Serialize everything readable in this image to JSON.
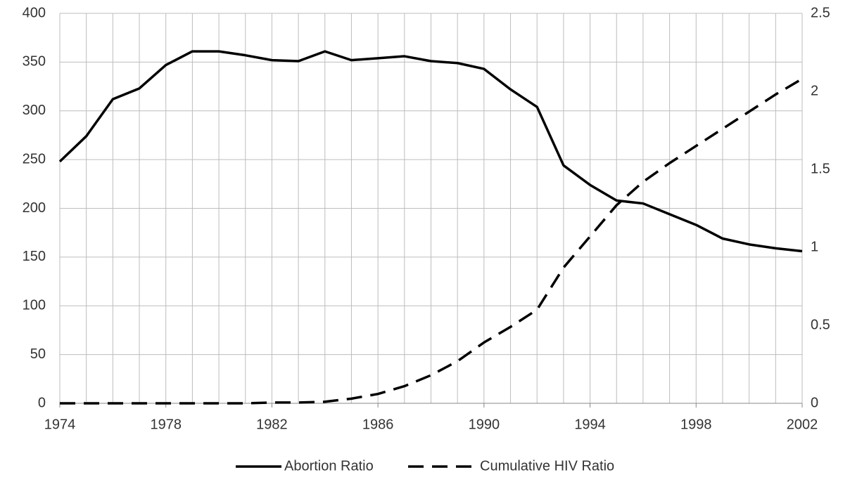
{
  "chart_data": {
    "type": "line",
    "x": [
      1974,
      1975,
      1976,
      1977,
      1978,
      1979,
      1980,
      1981,
      1982,
      1983,
      1984,
      1985,
      1986,
      1987,
      1988,
      1989,
      1990,
      1991,
      1992,
      1993,
      1994,
      1995,
      1996,
      1997,
      1998,
      1999,
      2000,
      2001,
      2002
    ],
    "series": [
      {
        "name": "Abortion Ratio",
        "color": "#000000",
        "line_style": "solid",
        "values": [
          248,
          274,
          312,
          323,
          347,
          361,
          361,
          357,
          352,
          351,
          361,
          352,
          354,
          356,
          351,
          349,
          343,
          322,
          304,
          244,
          224,
          208,
          205,
          194,
          183,
          169,
          163,
          159,
          156
        ]
      },
      {
        "name": "Cumulative HIV Ratio",
        "color": "#000000",
        "line_style": "dashed",
        "axis": "y2",
        "values": [
          0,
          0,
          0,
          0,
          0,
          0,
          0,
          0,
          0.005,
          0.005,
          0.01,
          0.03,
          0.06,
          0.11,
          0.18,
          0.27,
          0.39,
          0.49,
          0.6,
          0.87,
          1.07,
          1.27,
          1.42,
          1.54,
          1.65,
          1.76,
          1.87,
          1.98,
          2.08
        ]
      }
    ],
    "xlim": [
      1974,
      2002
    ],
    "xticks": [
      1974,
      1978,
      1982,
      1986,
      1990,
      1994,
      1998,
      2002
    ],
    "ylim": [
      0,
      400
    ],
    "yticks": [
      0,
      50,
      100,
      150,
      200,
      250,
      300,
      350,
      400
    ],
    "y2lim": [
      0,
      2.5
    ],
    "y2ticks": [
      0,
      0.5,
      1,
      1.5,
      2,
      2.5
    ],
    "grid": true,
    "legend": "bottom"
  }
}
